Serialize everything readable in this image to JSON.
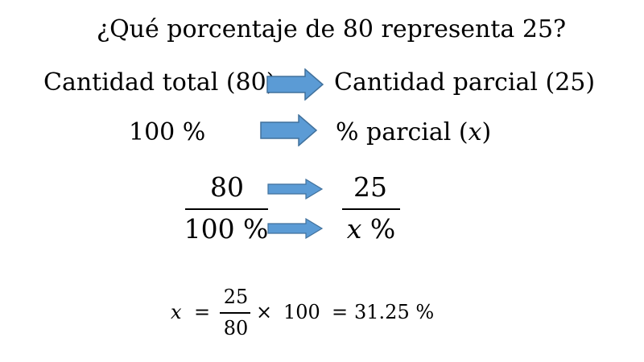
{
  "title": "¿Qué porcentaje de 80 representa 25?",
  "row1": {
    "left": "Cantidad total (80)",
    "right": "Cantidad parcial (25)"
  },
  "row2": {
    "left": "100 %",
    "right_prefix": "% parcial (",
    "right_var": "x",
    "right_suffix": ")"
  },
  "fraction_left": {
    "numerator": "80",
    "denominator": "100 %"
  },
  "fraction_right": {
    "numerator": "25",
    "denominator_var": "x",
    "denominator_unit": " %"
  },
  "formula": {
    "var": "x",
    "equals": "=",
    "numerator": "25",
    "denominator": "80",
    "times": "×",
    "multiplier": "100",
    "equals2": "=",
    "result": "31.25 %"
  },
  "colors": {
    "arrow_fill": "#5B9BD5",
    "arrow_stroke": "#41719C"
  },
  "icons": [
    "right-arrow-icon"
  ]
}
